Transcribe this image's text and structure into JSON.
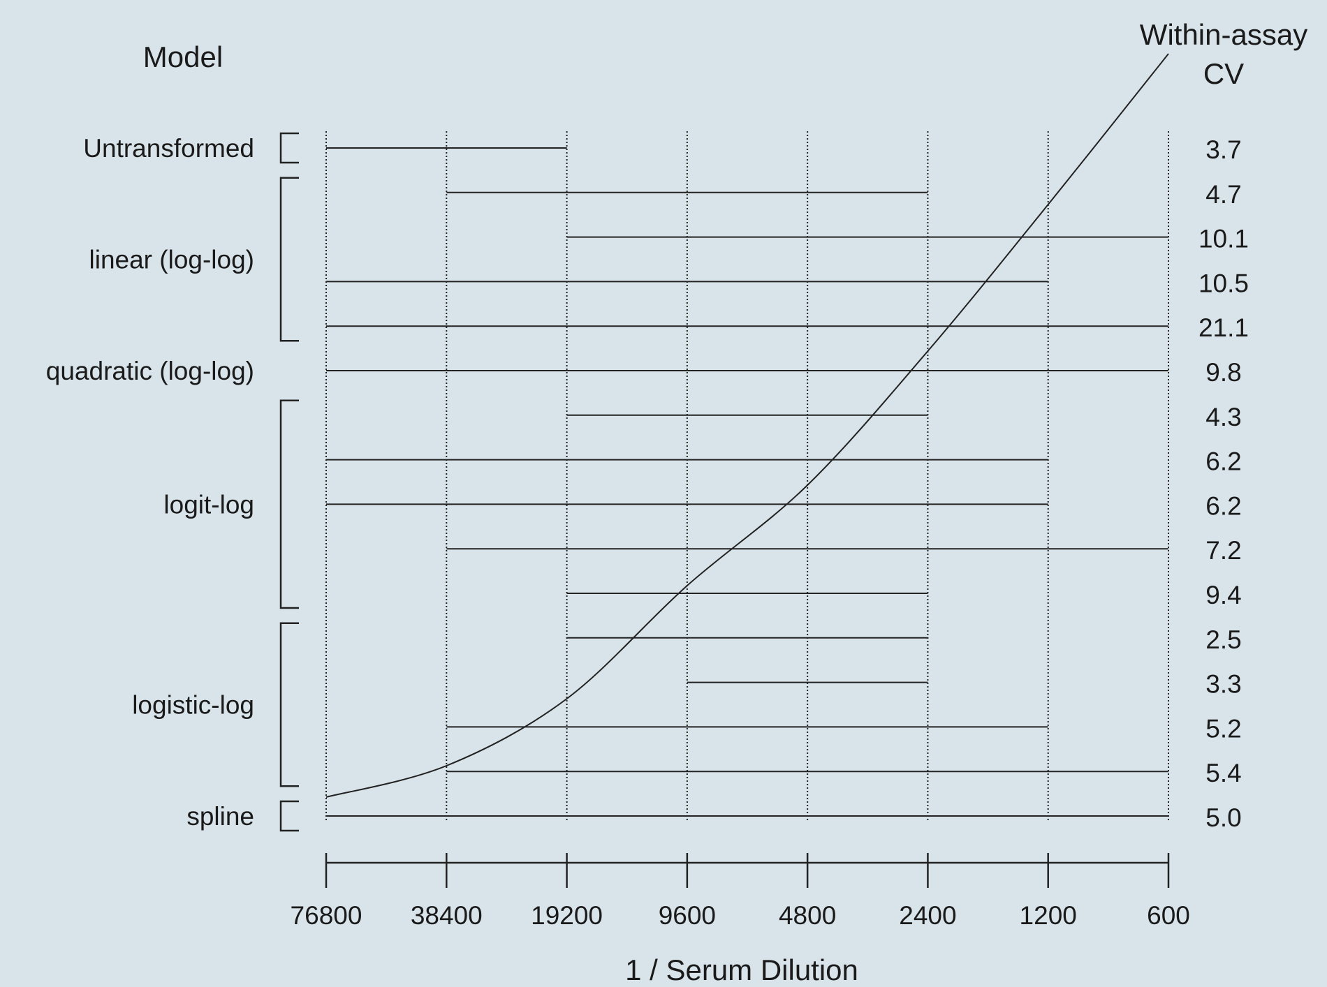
{
  "chart_data": {
    "type": "range-bars",
    "title": "",
    "model_header": "Model",
    "cv_header_line1": "Within-assay",
    "cv_header_line2": "CV",
    "xlabel": "1 / Serum Dilution",
    "x_ticks": [
      "76800",
      "38400",
      "19200",
      "9600",
      "4800",
      "2400",
      "1200",
      "600"
    ],
    "x_scale": "log2, reversed",
    "groups": [
      {
        "label": "Untransformed",
        "rows": [
          0,
          0
        ]
      },
      {
        "label": "linear (log-log)",
        "rows": [
          1,
          4
        ]
      },
      {
        "label": "quadratic (log-log)",
        "rows": [
          5,
          5
        ],
        "bracket": false
      },
      {
        "label": "logit-log",
        "rows": [
          6,
          10
        ]
      },
      {
        "label": "logistic-log",
        "rows": [
          11,
          14
        ]
      },
      {
        "label": "spline",
        "rows": [
          15,
          15
        ]
      }
    ],
    "ranges": [
      {
        "from": "76800",
        "to": "19200",
        "cv": "3.7"
      },
      {
        "from": "38400",
        "to": "2400",
        "cv": "4.7"
      },
      {
        "from": "19200",
        "to": "600",
        "cv": "10.1"
      },
      {
        "from": "76800",
        "to": "1200",
        "cv": "10.5"
      },
      {
        "from": "76800",
        "to": "600",
        "cv": "21.1"
      },
      {
        "from": "76800",
        "to": "600",
        "cv": "9.8"
      },
      {
        "from": "19200",
        "to": "2400",
        "cv": "4.3"
      },
      {
        "from": "76800",
        "to": "1200",
        "cv": "6.2"
      },
      {
        "from": "76800",
        "to": "1200",
        "cv": "6.2"
      },
      {
        "from": "38400",
        "to": "600",
        "cv": "7.2"
      },
      {
        "from": "19200",
        "to": "2400",
        "cv": "9.4"
      },
      {
        "from": "19200",
        "to": "2400",
        "cv": "2.5"
      },
      {
        "from": "9600",
        "to": "2400",
        "cv": "3.3"
      },
      {
        "from": "38400",
        "to": "1200",
        "cv": "5.2"
      },
      {
        "from": "38400",
        "to": "600",
        "cv": "5.4"
      },
      {
        "from": "76800",
        "to": "600",
        "cv": "5.0"
      }
    ],
    "curve": {
      "description": "sigmoid dose-response curve overlay",
      "x": [
        "76800",
        "38400",
        "19200",
        "9600",
        "4800",
        "2400",
        "1200",
        "600"
      ],
      "y_relative": [
        0.045,
        0.12,
        0.28,
        0.55,
        0.79,
        1.11,
        1.46,
        1.82
      ]
    },
    "grid": "vertical dotted lines at each tick"
  }
}
